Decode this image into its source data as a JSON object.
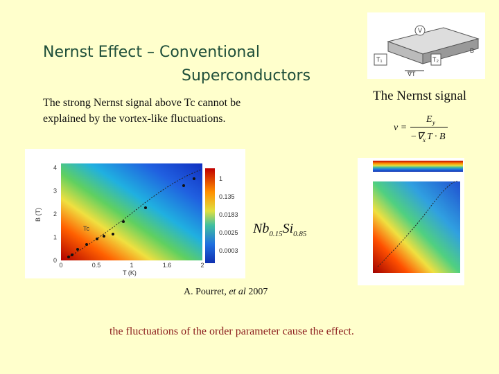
{
  "title": {
    "line1": "Nernst Effect – Conventional",
    "line2": "Superconductors"
  },
  "body": {
    "line1": "The strong Nernst signal above Tc cannot be",
    "line2": "explained by the vortex-like fluctuations."
  },
  "nernst_label": "The Nernst signal",
  "formula": {
    "lhs": "v =",
    "numerator": "E",
    "numerator_sub": "y",
    "denominator": "−∇",
    "denominator_sub": "x",
    "denominator_rest": "T · B"
  },
  "compound": {
    "el1": "Nb",
    "sub1": "0.15",
    "el2": "Si",
    "sub2": "0.85"
  },
  "diagram": {
    "v": "V",
    "b": "B",
    "grad": "∇T",
    "t1": "T₁",
    "t2": "T₂"
  },
  "left_plot": {
    "y_label": "B (T)",
    "x_label": "T (K)",
    "tc": "Tc",
    "yticks": [
      "0",
      "1",
      "2",
      "3",
      "4"
    ],
    "xticks": [
      "0",
      "0.5",
      "1",
      "1.6",
      "2"
    ],
    "colorbar": [
      "1",
      "0.135",
      "0.0183",
      "0.0025",
      "0.0003"
    ]
  },
  "citation": {
    "author": "A. Pourret, ",
    "etal": "et al",
    "year": " 2007"
  },
  "conclusion": "the fluctuations of the order parameter cause  the effect."
}
